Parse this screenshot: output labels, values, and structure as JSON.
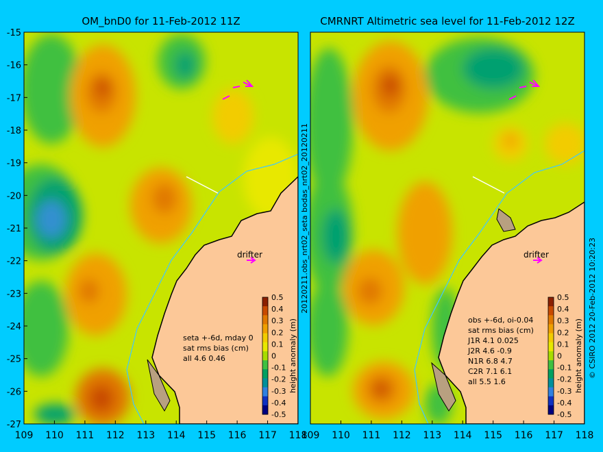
{
  "panels": [
    {
      "title": "OM_bnD0 for 11-Feb-2012 11Z",
      "notes": [
        "seta +-6d, mday 0",
        "sat rms bias (cm)",
        "all 4.6 0.46"
      ],
      "drifter_label": "drifter"
    },
    {
      "title": "CMRNRT Altimetric sea level  for 11-Feb-2012 12Z",
      "notes": [
        "obs +-6d, oi-0.04",
        "sat rms bias (cm)",
        "J1R   4.1 0.025",
        "J2R   4.6 -0.9",
        "N1R   6.8 4.7",
        "C2R   7.1 6.1",
        "all 5.5 1.6"
      ],
      "drifter_label": "drifter"
    }
  ],
  "x_ticks": [
    "109",
    "110",
    "111",
    "112",
    "113",
    "114",
    "115",
    "116",
    "117",
    "118"
  ],
  "y_ticks": [
    "-15",
    "-16",
    "-17",
    "-18",
    "-19",
    "-20",
    "-21",
    "-22",
    "-23",
    "-24",
    "-25",
    "-26",
    "-27"
  ],
  "colorbar": {
    "label": "height anomaly (m)",
    "ticks": [
      "0.5",
      "0.4",
      "0.3",
      "0.2",
      "0.1",
      "0",
      "-0.1",
      "-0.2",
      "-0.3",
      "-0.4",
      "-0.5"
    ],
    "colors": [
      "#8b2000",
      "#c84a00",
      "#e07800",
      "#f0a000",
      "#f2cc00",
      "#e8e800",
      "#a8dc00",
      "#40c040",
      "#00a060",
      "#00909a",
      "#3080e0",
      "#1030c0",
      "#000080"
    ]
  },
  "middle_labels": [
    "bodas_nrt02_20120211",
    "20120211.obs_nrt02_seta"
  ],
  "copyright": "© CSIRO 2012  20-Feb-2012 10:20:23",
  "colors": {
    "background": "#00ccff",
    "land": "#fcc898",
    "coast": "#000000",
    "isobath": "#40c8ff",
    "drifter": "#ff00ff"
  }
}
